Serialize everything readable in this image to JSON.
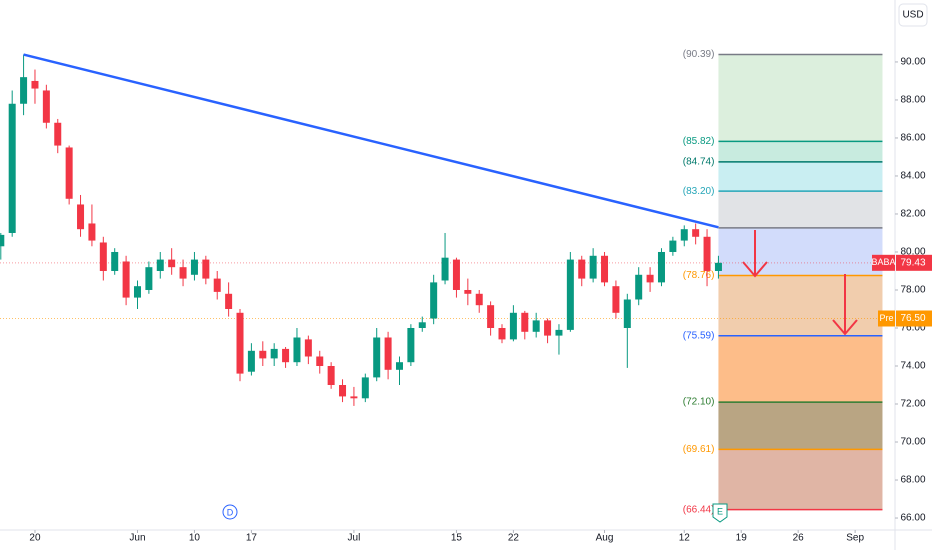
{
  "chart_data": {
    "type": "candlestick",
    "currency": "USD",
    "up_color": "#089981",
    "down_color": "#f23645",
    "xlim": [
      -3.07,
      75.5
    ],
    "ylim": [
      65.37,
      93.26
    ],
    "yticks": [
      {
        "value": 66,
        "label": "66.00"
      },
      {
        "value": 68,
        "label": "68.00"
      },
      {
        "value": 70,
        "label": "70.00"
      },
      {
        "value": 72,
        "label": "72.00"
      },
      {
        "value": 74,
        "label": "74.00"
      },
      {
        "value": 76,
        "label": "76.00"
      },
      {
        "value": 78,
        "label": "78.00"
      },
      {
        "value": 80,
        "label": "80.00"
      },
      {
        "value": 82,
        "label": "82.00"
      },
      {
        "value": 84,
        "label": "84.00"
      },
      {
        "value": 86,
        "label": "86.00"
      },
      {
        "value": 88,
        "label": "88.00"
      },
      {
        "value": 90,
        "label": "90.00"
      }
    ],
    "xticks": [
      {
        "value": 0,
        "label": "20"
      },
      {
        "value": 9,
        "label": "Jun"
      },
      {
        "value": 14,
        "label": "10"
      },
      {
        "value": 19,
        "label": "17"
      },
      {
        "value": 28,
        "label": "Jul"
      },
      {
        "value": 37,
        "label": "15"
      },
      {
        "value": 42,
        "label": "22"
      },
      {
        "value": 50,
        "label": "Aug"
      },
      {
        "value": 57,
        "label": "12"
      },
      {
        "value": 62,
        "label": "19"
      },
      {
        "value": 67,
        "label": "26"
      },
      {
        "value": 72,
        "label": "Sep"
      }
    ],
    "x": [
      -3,
      -2,
      -1,
      0,
      1,
      2,
      3,
      4,
      5,
      6,
      7,
      8,
      9,
      10,
      11,
      12,
      13,
      14,
      15,
      16,
      17,
      18,
      19,
      20,
      21,
      22,
      23,
      24,
      25,
      26,
      27,
      28,
      29,
      30,
      31,
      32,
      33,
      34,
      35,
      36,
      37,
      38,
      39,
      40,
      41,
      42,
      43,
      44,
      45,
      46,
      47,
      48,
      49,
      50,
      51,
      52,
      53,
      54,
      55,
      56,
      57,
      58,
      59,
      60
    ],
    "open": [
      80.3,
      81,
      87.8,
      89,
      88.5,
      86.8,
      85.5,
      82.5,
      81.5,
      80.5,
      79,
      79.5,
      77.6,
      78,
      79,
      79.6,
      79.2,
      78.8,
      79.6,
      78.6,
      77.8,
      76.8,
      73.7,
      74.8,
      74.4,
      74.9,
      74.2,
      75.4,
      74.5,
      74,
      73,
      72.4,
      72.3,
      73.4,
      75.5,
      73.8,
      74.2,
      76,
      76.5,
      78.5,
      79.6,
      78,
      77.8,
      77.2,
      76,
      75.4,
      76.8,
      75.8,
      76.4,
      75.6,
      75.9,
      79.6,
      78.6,
      79.8,
      78.2,
      76,
      77.5,
      78.8,
      78.4,
      80,
      80.6,
      81.2,
      80.8,
      79
    ],
    "high": [
      81,
      88.5,
      90.39,
      89.6,
      88.8,
      87,
      85.6,
      83,
      82.5,
      80.8,
      80.2,
      79.8,
      78.5,
      79.5,
      80,
      80.2,
      79.6,
      80,
      79.8,
      79,
      78.4,
      77,
      75.2,
      75.3,
      75.2,
      75,
      76,
      75.6,
      74.8,
      74.2,
      73.3,
      72.9,
      73.6,
      76,
      75.8,
      74.5,
      76.2,
      76.6,
      78.8,
      81,
      79.7,
      78.6,
      78,
      77.4,
      76.2,
      77.2,
      76.9,
      76.8,
      76.5,
      76.2,
      80,
      79.8,
      80.2,
      80,
      78.5,
      77.8,
      79.2,
      79.2,
      80.2,
      80.8,
      81.4,
      81.5,
      81.2,
      79.8
    ],
    "low": [
      79.6,
      80.8,
      87.2,
      87.8,
      86.5,
      85.2,
      82.5,
      80.8,
      80.3,
      78.5,
      78.8,
      77.2,
      77,
      77.8,
      78.6,
      78.8,
      78.2,
      78.5,
      78.3,
      77.5,
      76.6,
      73.2,
      73.5,
      74,
      74,
      73.9,
      74,
      74.1,
      73.6,
      72.8,
      72.1,
      71.9,
      72.1,
      73.2,
      73.3,
      73,
      74,
      75.8,
      76.2,
      78.3,
      77.6,
      77.2,
      76.8,
      75.6,
      75.2,
      75.3,
      75.4,
      75.5,
      75.2,
      74.6,
      75.8,
      78.2,
      78.4,
      78.2,
      76.5,
      73.9,
      77.2,
      77.9,
      78.2,
      79.8,
      80.3,
      80.4,
      78.2,
      78.6
    ],
    "close": [
      80.9,
      87.8,
      89.2,
      88.6,
      86.8,
      85.6,
      82.8,
      81.2,
      80.6,
      79,
      80,
      77.6,
      78.2,
      79.2,
      79.6,
      79.2,
      78.6,
      79.6,
      78.6,
      77.9,
      77,
      73.6,
      74.8,
      74.4,
      74.9,
      74.2,
      75.5,
      74.5,
      74,
      73,
      72.4,
      72.3,
      73.4,
      75.5,
      73.8,
      74.2,
      76,
      76.3,
      78.4,
      79.7,
      78,
      77.8,
      77.2,
      76,
      75.4,
      76.8,
      75.8,
      76.4,
      75.6,
      75.9,
      79.6,
      78.6,
      79.8,
      78.4,
      76.8,
      77.5,
      78.8,
      78.4,
      80,
      80.6,
      81.2,
      80.8,
      79,
      79.43
    ],
    "trendline": {
      "color": "#2962ff",
      "x": [
        -1,
        60
      ],
      "y": [
        90.39,
        81.3
      ]
    },
    "fib": {
      "xrange": [
        60,
        74.4
      ],
      "levels": [
        {
          "value": 90.39,
          "label": "(90.39)",
          "color": "#787b86",
          "fill": "#dcefdd"
        },
        {
          "value": 85.82,
          "label": "(85.82)",
          "color": "#089981",
          "fill": "#c8ebdf"
        },
        {
          "value": 84.74,
          "label": "(84.74)",
          "color": "#00796b",
          "fill": "#c9eef2"
        },
        {
          "value": 83.2,
          "label": "(83.20)",
          "color": "#26a6b8",
          "fill": "#e1e3e6"
        },
        {
          "value": 81.27,
          "color": "#787b86",
          "fill": "#d2dcfb"
        },
        {
          "value": 78.76,
          "label": "(78.76)",
          "color": "#ff9800",
          "fill": "#f1cdad"
        },
        {
          "value": 75.59,
          "label": "(75.59)",
          "color": "#2962ff",
          "fill": "#fdbd89"
        },
        {
          "value": 72.1,
          "label": "(72.10)",
          "color": "#2e7d32",
          "fill": "#b9a583"
        },
        {
          "value": 69.61,
          "label": "(69.61)",
          "color": "#ff9800",
          "fill": "#e0b5a5"
        },
        {
          "value": 66.44,
          "label": "(66.44)",
          "color": "#f23645"
        }
      ]
    },
    "last_price": {
      "symbol": "BABA",
      "value": 79.43,
      "color": "#f23645"
    },
    "premarket": {
      "label": "Pre",
      "value": 76.5,
      "value_label": "76.50",
      "color": "#ff9800"
    },
    "events": [
      "D",
      "E"
    ]
  }
}
